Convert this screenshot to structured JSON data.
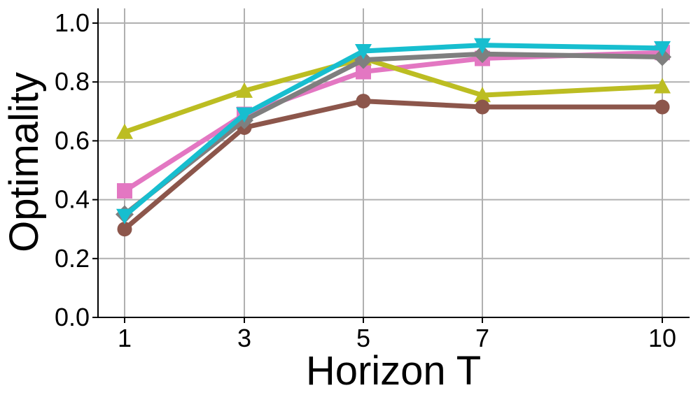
{
  "chart_data": {
    "type": "line",
    "xlabel": "Horizon T",
    "ylabel": "Optimality",
    "x": [
      1,
      3,
      5,
      7,
      10
    ],
    "x_tick_labels": [
      "1",
      "3",
      "5",
      "7",
      "10"
    ],
    "y_ticks": [
      0.0,
      0.2,
      0.4,
      0.6,
      0.8,
      1.0
    ],
    "y_tick_labels": [
      "0.0",
      "0.2",
      "0.4",
      "0.6",
      "0.8",
      "1.0"
    ],
    "ylim": [
      0.0,
      1.05
    ],
    "grid": true,
    "legend": "none",
    "series": [
      {
        "color": "#e377c2",
        "marker": "square",
        "values": [
          0.43,
          0.69,
          0.835,
          0.88,
          0.9
        ]
      },
      {
        "color": "#bcbd22",
        "marker": "triangle-up",
        "values": [
          0.63,
          0.77,
          0.88,
          0.755,
          0.785
        ]
      },
      {
        "color": "#8c564b",
        "marker": "circle",
        "values": [
          0.3,
          0.645,
          0.735,
          0.715,
          0.715
        ]
      },
      {
        "color": "#7f7f7f",
        "marker": "diamond",
        "values": [
          0.35,
          0.67,
          0.875,
          0.895,
          0.885
        ]
      },
      {
        "color": "#17becf",
        "marker": "triangle-down",
        "values": [
          0.345,
          0.69,
          0.905,
          0.925,
          0.915
        ]
      }
    ]
  }
}
